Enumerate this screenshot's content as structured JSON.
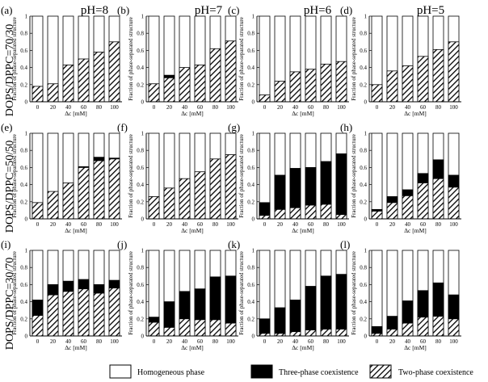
{
  "figure": {
    "column_headers": [
      "pH=8",
      "pH=7",
      "pH=6",
      "pH=5"
    ],
    "row_headers": [
      "DOPS/DPPC=70/30",
      "DOPS/DPPC=50/50",
      "DOPS/DPPC=30/70"
    ],
    "legend": {
      "homogeneous": "Homogeneous phase",
      "three_phase": "Three-phase coexistence",
      "two_phase": "Two-phase coexistence"
    }
  },
  "chart_data": [
    {
      "panel": "(a)",
      "type": "bar",
      "stacked": true,
      "categories": [
        "0",
        "20",
        "40",
        "60",
        "80",
        "100"
      ],
      "series": [
        {
          "name": "Two-phase coexistence",
          "values": [
            0.18,
            0.21,
            0.43,
            0.5,
            0.58,
            0.7
          ]
        },
        {
          "name": "Three-phase coexistence",
          "values": [
            0,
            0,
            0,
            0,
            0,
            0
          ]
        }
      ],
      "ylabel": "Fraction of phase-separated structure",
      "xlabel": "Δc [mM]",
      "ylim": [
        0,
        1
      ],
      "yticks": [
        "0",
        "0.2",
        "0.4",
        "0.6",
        "0.8",
        "1"
      ]
    },
    {
      "panel": "(b)",
      "type": "bar",
      "stacked": true,
      "categories": [
        "0",
        "20",
        "40",
        "60",
        "80",
        "100"
      ],
      "series": [
        {
          "name": "Two-phase coexistence",
          "values": [
            0.21,
            0.28,
            0.4,
            0.43,
            0.62,
            0.71
          ]
        },
        {
          "name": "Three-phase coexistence",
          "values": [
            0,
            0.03,
            0,
            0,
            0,
            0
          ]
        }
      ],
      "ylabel": "Fraction of phase-separated structure",
      "xlabel": "Δc [mM]",
      "ylim": [
        0,
        1
      ],
      "yticks": [
        "0",
        "0.2",
        "0.4",
        "0.6",
        "0.8",
        "1"
      ]
    },
    {
      "panel": "(c)",
      "type": "bar",
      "stacked": true,
      "categories": [
        "0",
        "20",
        "40",
        "60",
        "80",
        "100"
      ],
      "series": [
        {
          "name": "Two-phase coexistence",
          "values": [
            0.08,
            0.24,
            0.35,
            0.38,
            0.44,
            0.47
          ]
        },
        {
          "name": "Three-phase coexistence",
          "values": [
            0,
            0,
            0,
            0,
            0,
            0
          ]
        }
      ],
      "ylabel": "Fraction of phase-separated structure",
      "xlabel": "Δc [mM]",
      "ylim": [
        0,
        1
      ],
      "yticks": [
        "0",
        "0.2",
        "0.4",
        "0.6",
        "0.8",
        "1"
      ]
    },
    {
      "panel": "(d)",
      "type": "bar",
      "stacked": true,
      "categories": [
        "0",
        "20",
        "40",
        "60",
        "80",
        "100"
      ],
      "series": [
        {
          "name": "Two-phase coexistence",
          "values": [
            0.2,
            0.36,
            0.42,
            0.53,
            0.61,
            0.7
          ]
        },
        {
          "name": "Three-phase coexistence",
          "values": [
            0,
            0,
            0,
            0,
            0,
            0
          ]
        }
      ],
      "ylabel": "Fraction of phase-separated structure",
      "xlabel": "Δc [mM]",
      "ylim": [
        0,
        1
      ],
      "yticks": [
        "0",
        "0.2",
        "0.4",
        "0.6",
        "0.8",
        "1"
      ]
    },
    {
      "panel": "(e)",
      "type": "bar",
      "stacked": true,
      "categories": [
        "0",
        "20",
        "40",
        "60",
        "80",
        "100"
      ],
      "series": [
        {
          "name": "Two-phase coexistence",
          "values": [
            0.19,
            0.32,
            0.42,
            0.6,
            0.68,
            0.7
          ]
        },
        {
          "name": "Three-phase coexistence",
          "values": [
            0,
            0,
            0,
            0.01,
            0.04,
            0.01
          ]
        }
      ],
      "ylabel": "Fraction of phase-separated structure",
      "xlabel": "Δc [mM]",
      "ylim": [
        0,
        1
      ],
      "yticks": [
        "0",
        "0.2",
        "0.4",
        "0.6",
        "0.8",
        "1"
      ]
    },
    {
      "panel": "(f)",
      "type": "bar",
      "stacked": true,
      "categories": [
        "0",
        "20",
        "40",
        "60",
        "80",
        "100"
      ],
      "series": [
        {
          "name": "Two-phase coexistence",
          "values": [
            0.26,
            0.36,
            0.47,
            0.55,
            0.7,
            0.75
          ]
        },
        {
          "name": "Three-phase coexistence",
          "values": [
            0,
            0,
            0,
            0,
            0,
            0
          ]
        }
      ],
      "ylabel": "Fraction of phase-separated structure",
      "xlabel": "Δc [mM]",
      "ylim": [
        0,
        1
      ],
      "yticks": [
        "0",
        "0.2",
        "0.4",
        "0.6",
        "0.8",
        "1"
      ]
    },
    {
      "panel": "(g)",
      "type": "bar",
      "stacked": true,
      "categories": [
        "0",
        "20",
        "40",
        "60",
        "80",
        "100"
      ],
      "series": [
        {
          "name": "Two-phase coexistence",
          "values": [
            0.04,
            0.11,
            0.13,
            0.16,
            0.17,
            0.05
          ]
        },
        {
          "name": "Three-phase coexistence",
          "values": [
            0.15,
            0.4,
            0.46,
            0.44,
            0.5,
            0.71
          ]
        }
      ],
      "ylabel": "Fraction of phase-separated structure",
      "xlabel": "Δc [mM]",
      "ylim": [
        0,
        1
      ],
      "yticks": [
        "0",
        "0.2",
        "0.4",
        "0.6",
        "0.8",
        "1"
      ]
    },
    {
      "panel": "(h)",
      "type": "bar",
      "stacked": true,
      "categories": [
        "0",
        "20",
        "40",
        "60",
        "80",
        "100"
      ],
      "series": [
        {
          "name": "Two-phase coexistence",
          "values": [
            0.09,
            0.19,
            0.27,
            0.42,
            0.47,
            0.37
          ]
        },
        {
          "name": "Three-phase coexistence",
          "values": [
            0.02,
            0.07,
            0.07,
            0.11,
            0.22,
            0.14
          ]
        }
      ],
      "ylabel": "Fraction of phase-separated structure",
      "xlabel": "Δc [mM]",
      "ylim": [
        0,
        1
      ],
      "yticks": [
        "0",
        "0.2",
        "0.4",
        "0.6",
        "0.8",
        "1"
      ]
    },
    {
      "panel": "(i)",
      "type": "bar",
      "stacked": true,
      "categories": [
        "0",
        "20",
        "40",
        "60",
        "80",
        "100"
      ],
      "series": [
        {
          "name": "Two-phase coexistence",
          "values": [
            0.24,
            0.48,
            0.52,
            0.55,
            0.5,
            0.56
          ]
        },
        {
          "name": "Three-phase coexistence",
          "values": [
            0.18,
            0.12,
            0.12,
            0.11,
            0.1,
            0.09
          ]
        }
      ],
      "ylabel": "Fraction of phase-separated structure",
      "xlabel": "Δc [mM]",
      "ylim": [
        0,
        1
      ],
      "yticks": [
        "0",
        "0.2",
        "0.4",
        "0.6",
        "0.8",
        "1"
      ]
    },
    {
      "panel": "(j)",
      "type": "bar",
      "stacked": true,
      "categories": [
        "0",
        "20",
        "40",
        "60",
        "80",
        "100"
      ],
      "series": [
        {
          "name": "Two-phase coexistence",
          "values": [
            0.16,
            0.1,
            0.2,
            0.19,
            0.19,
            0.15
          ]
        },
        {
          "name": "Three-phase coexistence",
          "values": [
            0.06,
            0.3,
            0.32,
            0.36,
            0.5,
            0.55
          ]
        }
      ],
      "ylabel": "Fraction of phase-separated structure",
      "xlabel": "Δc [mM]",
      "ylim": [
        0,
        1
      ],
      "yticks": [
        "0",
        "0.2",
        "0.4",
        "0.6",
        "0.8",
        "1"
      ]
    },
    {
      "panel": "(k)",
      "type": "bar",
      "stacked": true,
      "categories": [
        "0",
        "20",
        "40",
        "60",
        "80",
        "100"
      ],
      "series": [
        {
          "name": "Two-phase coexistence",
          "values": [
            0.03,
            0.03,
            0.05,
            0.07,
            0.08,
            0.08
          ]
        },
        {
          "name": "Three-phase coexistence",
          "values": [
            0.17,
            0.3,
            0.37,
            0.51,
            0.62,
            0.64
          ]
        }
      ],
      "ylabel": "Fraction of phase-separated structure",
      "xlabel": "Δc [mM]",
      "ylim": [
        0,
        1
      ],
      "yticks": [
        "0",
        "0.2",
        "0.4",
        "0.6",
        "0.8",
        "1"
      ]
    },
    {
      "panel": "(l)",
      "type": "bar",
      "stacked": true,
      "categories": [
        "0",
        "20",
        "40",
        "60",
        "80",
        "100"
      ],
      "series": [
        {
          "name": "Two-phase coexistence",
          "values": [
            0.03,
            0.08,
            0.15,
            0.22,
            0.23,
            0.2
          ]
        },
        {
          "name": "Three-phase coexistence",
          "values": [
            0.08,
            0.15,
            0.26,
            0.31,
            0.39,
            0.28
          ]
        }
      ],
      "ylabel": "Fraction of phase-separated structure",
      "xlabel": "Δc [mM]",
      "ylim": [
        0,
        1
      ],
      "yticks": [
        "0",
        "0.2",
        "0.4",
        "0.6",
        "0.8",
        "1"
      ]
    }
  ]
}
